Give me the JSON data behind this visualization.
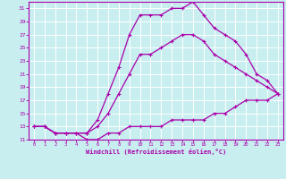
{
  "xlabel": "Windchill (Refroidissement éolien,°C)",
  "ylabel": "",
  "bg_color": "#c8eef0",
  "line_color": "#aa00aa",
  "grid_color": "#ffffff",
  "xlim": [
    -0.5,
    23.5
  ],
  "ylim": [
    11,
    32
  ],
  "yticks": [
    11,
    13,
    15,
    17,
    19,
    21,
    23,
    25,
    27,
    29,
    31
  ],
  "xticks": [
    0,
    1,
    2,
    3,
    4,
    5,
    6,
    7,
    8,
    9,
    10,
    11,
    12,
    13,
    14,
    15,
    16,
    17,
    18,
    19,
    20,
    21,
    22,
    23
  ],
  "curves": [
    {
      "x": [
        0,
        1,
        2,
        3,
        4,
        5,
        6,
        7,
        8,
        9,
        10,
        11,
        12,
        13,
        14,
        15,
        16,
        17,
        18,
        19,
        20,
        21,
        22,
        23
      ],
      "y": [
        13,
        13,
        12,
        12,
        12,
        11,
        11,
        12,
        12,
        13,
        13,
        13,
        13,
        14,
        14,
        14,
        14,
        15,
        15,
        16,
        17,
        17,
        17,
        18
      ]
    },
    {
      "x": [
        0,
        1,
        2,
        3,
        4,
        5,
        6,
        7,
        8,
        9,
        10,
        11,
        12,
        13,
        14,
        15,
        16,
        17,
        18,
        19,
        20,
        21,
        22,
        23
      ],
      "y": [
        13,
        13,
        12,
        12,
        12,
        12,
        13,
        15,
        18,
        21,
        24,
        24,
        25,
        26,
        27,
        27,
        26,
        24,
        23,
        22,
        21,
        20,
        19,
        18
      ]
    },
    {
      "x": [
        0,
        1,
        2,
        3,
        4,
        5,
        6,
        7,
        8,
        9,
        10,
        11,
        12,
        13,
        14,
        15,
        16,
        17,
        18,
        19,
        20,
        21,
        22,
        23
      ],
      "y": [
        13,
        13,
        12,
        12,
        12,
        12,
        14,
        18,
        22,
        27,
        30,
        30,
        30,
        31,
        31,
        32,
        30,
        28,
        27,
        26,
        24,
        21,
        20,
        18
      ]
    }
  ]
}
